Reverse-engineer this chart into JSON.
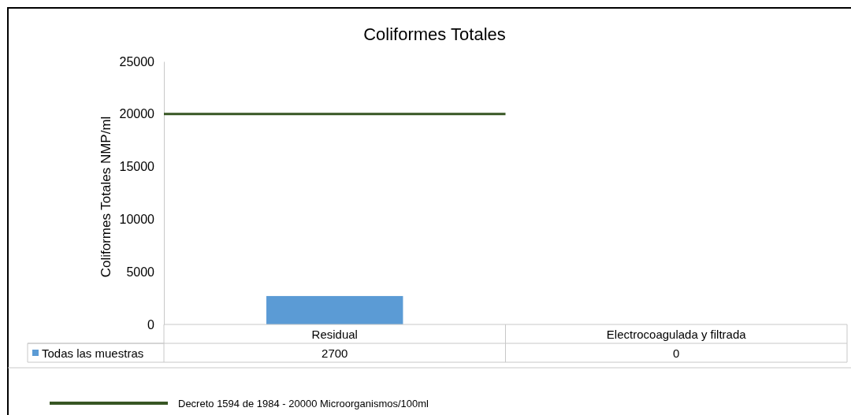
{
  "chart_data": {
    "type": "bar",
    "title": "Coliformes Totales",
    "ylabel": "Coliformes Totales  NMP/ml",
    "categories": [
      "Residual",
      "Electrocoagulada y filtrada"
    ],
    "series": [
      {
        "name": "Todas las muestras",
        "color": "#5b9bd5",
        "values": [
          2700,
          0
        ]
      }
    ],
    "ylim": [
      0,
      25000
    ],
    "yticks": [
      0,
      5000,
      10000,
      15000,
      20000,
      25000
    ],
    "ref_lines": [
      {
        "axis": "y",
        "value": 20000,
        "color": "#375623"
      }
    ],
    "annotations": [
      "Decreto 1594 de 1984 - 20000 Microorganismos/100ml"
    ],
    "data_labels": true,
    "legend": "bottom",
    "grid": false
  }
}
